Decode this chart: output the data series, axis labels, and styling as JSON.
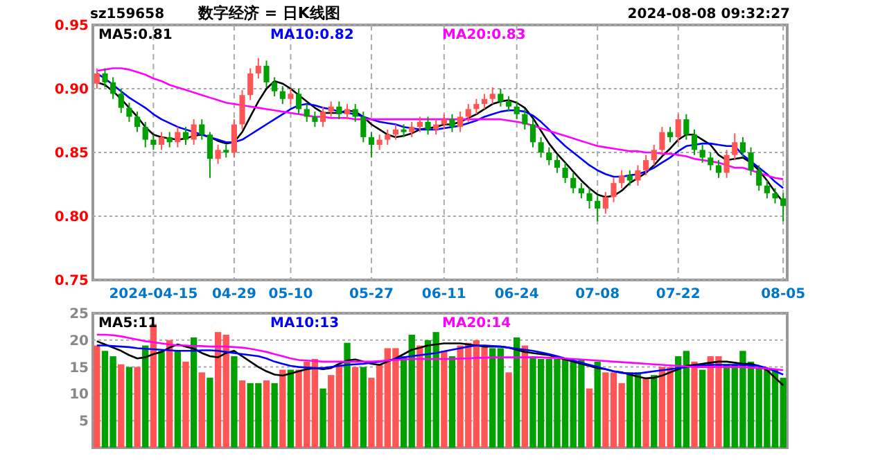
{
  "chart_data": [
    {
      "type": "candlestick",
      "title": "数字经济 = 日K线图",
      "annotations": [
        "sz159658",
        "2024-08-08 09:32:27"
      ],
      "categories": [
        null,
        null,
        null,
        null,
        null,
        null,
        null,
        "2024-04-15",
        null,
        null,
        null,
        null,
        null,
        null,
        null,
        null,
        null,
        "04-29",
        null,
        null,
        null,
        null,
        null,
        null,
        "05-10",
        null,
        null,
        null,
        null,
        null,
        null,
        null,
        null,
        null,
        "05-27",
        null,
        null,
        null,
        null,
        null,
        null,
        null,
        null,
        "06-11",
        null,
        null,
        null,
        null,
        null,
        null,
        null,
        null,
        "06-24",
        null,
        null,
        null,
        null,
        null,
        null,
        null,
        null,
        null,
        "07-08",
        null,
        null,
        null,
        null,
        null,
        null,
        null,
        null,
        null,
        "07-22",
        null,
        null,
        null,
        null,
        null,
        null,
        null,
        null,
        null,
        null,
        null,
        null,
        "08-05"
      ],
      "ohlc": [
        [
          0.904,
          0.916,
          0.9,
          0.912
        ],
        [
          0.912,
          0.916,
          0.901,
          0.905
        ],
        [
          0.905,
          0.909,
          0.892,
          0.896
        ],
        [
          0.896,
          0.9,
          0.881,
          0.885
        ],
        [
          0.885,
          0.889,
          0.874,
          0.878
        ],
        [
          0.878,
          0.882,
          0.866,
          0.87
        ],
        [
          0.87,
          0.874,
          0.854,
          0.86
        ],
        [
          0.86,
          0.864,
          0.852,
          0.856
        ],
        [
          0.856,
          0.866,
          0.852,
          0.862
        ],
        [
          0.862,
          0.866,
          0.854,
          0.858
        ],
        [
          0.858,
          0.87,
          0.854,
          0.866
        ],
        [
          0.866,
          0.87,
          0.856,
          0.86
        ],
        [
          0.86,
          0.876,
          0.856,
          0.872
        ],
        [
          0.872,
          0.876,
          0.86,
          0.864
        ],
        [
          0.864,
          0.866,
          0.83,
          0.845
        ],
        [
          0.845,
          0.856,
          0.841,
          0.852
        ],
        [
          0.852,
          0.856,
          0.846,
          0.85
        ],
        [
          0.85,
          0.876,
          0.846,
          0.872
        ],
        [
          0.872,
          0.899,
          0.868,
          0.895
        ],
        [
          0.895,
          0.916,
          0.891,
          0.912
        ],
        [
          0.912,
          0.924,
          0.908,
          0.918
        ],
        [
          0.918,
          0.922,
          0.901,
          0.905
        ],
        [
          0.905,
          0.909,
          0.894,
          0.898
        ],
        [
          0.898,
          0.902,
          0.888,
          0.892
        ],
        [
          0.892,
          0.9,
          0.888,
          0.896
        ],
        [
          0.896,
          0.9,
          0.88,
          0.884
        ],
        [
          0.884,
          0.888,
          0.874,
          0.878
        ],
        [
          0.878,
          0.882,
          0.87,
          0.874
        ],
        [
          0.874,
          0.886,
          0.87,
          0.882
        ],
        [
          0.882,
          0.89,
          0.878,
          0.886
        ],
        [
          0.886,
          0.89,
          0.876,
          0.88
        ],
        [
          0.88,
          0.888,
          0.876,
          0.884
        ],
        [
          0.884,
          0.888,
          0.874,
          0.878
        ],
        [
          0.878,
          0.882,
          0.858,
          0.862
        ],
        [
          0.862,
          0.866,
          0.846,
          0.856
        ],
        [
          0.856,
          0.864,
          0.852,
          0.86
        ],
        [
          0.86,
          0.868,
          0.856,
          0.864
        ],
        [
          0.864,
          0.872,
          0.86,
          0.868
        ],
        [
          0.868,
          0.872,
          0.862,
          0.866
        ],
        [
          0.866,
          0.874,
          0.862,
          0.87
        ],
        [
          0.87,
          0.878,
          0.866,
          0.874
        ],
        [
          0.874,
          0.878,
          0.864,
          0.868
        ],
        [
          0.868,
          0.876,
          0.864,
          0.872
        ],
        [
          0.872,
          0.88,
          0.868,
          0.876
        ],
        [
          0.876,
          0.88,
          0.866,
          0.87
        ],
        [
          0.87,
          0.882,
          0.866,
          0.878
        ],
        [
          0.878,
          0.888,
          0.874,
          0.884
        ],
        [
          0.884,
          0.892,
          0.88,
          0.888
        ],
        [
          0.888,
          0.896,
          0.884,
          0.892
        ],
        [
          0.892,
          0.901,
          0.888,
          0.896
        ],
        [
          0.896,
          0.9,
          0.886,
          0.89
        ],
        [
          0.89,
          0.894,
          0.882,
          0.886
        ],
        [
          0.886,
          0.89,
          0.876,
          0.88
        ],
        [
          0.88,
          0.884,
          0.868,
          0.872
        ],
        [
          0.872,
          0.876,
          0.854,
          0.858
        ],
        [
          0.858,
          0.862,
          0.846,
          0.85
        ],
        [
          0.85,
          0.854,
          0.84,
          0.844
        ],
        [
          0.844,
          0.848,
          0.834,
          0.838
        ],
        [
          0.838,
          0.842,
          0.826,
          0.83
        ],
        [
          0.83,
          0.834,
          0.818,
          0.822
        ],
        [
          0.822,
          0.826,
          0.814,
          0.818
        ],
        [
          0.818,
          0.822,
          0.806,
          0.812
        ],
        [
          0.812,
          0.816,
          0.796,
          0.806
        ],
        [
          0.806,
          0.819,
          0.802,
          0.815
        ],
        [
          0.815,
          0.83,
          0.811,
          0.826
        ],
        [
          0.826,
          0.836,
          0.822,
          0.832
        ],
        [
          0.832,
          0.836,
          0.824,
          0.828
        ],
        [
          0.828,
          0.84,
          0.824,
          0.836
        ],
        [
          0.836,
          0.848,
          0.832,
          0.844
        ],
        [
          0.844,
          0.856,
          0.84,
          0.852
        ],
        [
          0.852,
          0.87,
          0.848,
          0.866
        ],
        [
          0.866,
          0.87,
          0.858,
          0.862
        ],
        [
          0.862,
          0.88,
          0.858,
          0.876
        ],
        [
          0.876,
          0.88,
          0.86,
          0.864
        ],
        [
          0.864,
          0.868,
          0.848,
          0.852
        ],
        [
          0.852,
          0.856,
          0.842,
          0.846
        ],
        [
          0.846,
          0.85,
          0.836,
          0.84
        ],
        [
          0.84,
          0.844,
          0.83,
          0.834
        ],
        [
          0.834,
          0.852,
          0.83,
          0.848
        ],
        [
          0.848,
          0.865,
          0.844,
          0.858
        ],
        [
          0.858,
          0.862,
          0.846,
          0.85
        ],
        [
          0.85,
          0.854,
          0.832,
          0.836
        ],
        [
          0.836,
          0.84,
          0.82,
          0.824
        ],
        [
          0.824,
          0.828,
          0.814,
          0.818
        ],
        [
          0.818,
          0.822,
          0.81,
          0.814
        ],
        [
          0.814,
          0.818,
          0.796,
          0.808
        ]
      ],
      "series": [
        {
          "type": "line",
          "name": "MA5:0.81",
          "color": "#000000",
          "values": [
            0.905,
            0.903,
            0.898,
            0.892,
            0.885,
            0.878,
            0.87,
            0.864,
            0.862,
            0.861,
            0.86,
            0.861,
            0.863,
            0.864,
            0.862,
            0.859,
            0.857,
            0.858,
            0.866,
            0.878,
            0.89,
            0.9,
            0.906,
            0.904,
            0.9,
            0.895,
            0.89,
            0.885,
            0.881,
            0.881,
            0.881,
            0.883,
            0.882,
            0.878,
            0.872,
            0.868,
            0.864,
            0.862,
            0.863,
            0.865,
            0.868,
            0.869,
            0.87,
            0.872,
            0.872,
            0.874,
            0.877,
            0.88,
            0.884,
            0.888,
            0.89,
            0.891,
            0.889,
            0.885,
            0.877,
            0.867,
            0.857,
            0.849,
            0.842,
            0.835,
            0.828,
            0.822,
            0.817,
            0.815,
            0.816,
            0.82,
            0.826,
            0.83,
            0.834,
            0.84,
            0.847,
            0.853,
            0.86,
            0.864,
            0.864,
            0.86,
            0.856,
            0.848,
            0.844,
            0.845,
            0.846,
            0.842,
            0.836,
            0.828,
            0.819,
            0.811
          ]
        },
        {
          "type": "line",
          "name": "MA10:0.82",
          "color": "#0000ff",
          "values": [
            0.912,
            0.908,
            0.903,
            0.898,
            0.893,
            0.889,
            0.885,
            0.88,
            0.876,
            0.873,
            0.87,
            0.868,
            0.866,
            0.864,
            0.862,
            0.86,
            0.858,
            0.858,
            0.86,
            0.864,
            0.868,
            0.872,
            0.876,
            0.88,
            0.884,
            0.887,
            0.888,
            0.887,
            0.885,
            0.884,
            0.882,
            0.881,
            0.88,
            0.878,
            0.876,
            0.874,
            0.873,
            0.872,
            0.87,
            0.869,
            0.868,
            0.868,
            0.868,
            0.869,
            0.87,
            0.871,
            0.873,
            0.875,
            0.878,
            0.88,
            0.882,
            0.883,
            0.883,
            0.882,
            0.879,
            0.874,
            0.868,
            0.861,
            0.855,
            0.85,
            0.845,
            0.84,
            0.836,
            0.833,
            0.831,
            0.831,
            0.832,
            0.833,
            0.835,
            0.838,
            0.842,
            0.846,
            0.851,
            0.855,
            0.856,
            0.857,
            0.857,
            0.856,
            0.855,
            0.855,
            0.848,
            0.843,
            0.838,
            0.833,
            0.827,
            0.822
          ]
        },
        {
          "type": "line",
          "name": "MA20:0.83",
          "color": "#ff00ff",
          "values": [
            0.914,
            0.915,
            0.916,
            0.916,
            0.915,
            0.913,
            0.911,
            0.908,
            0.906,
            0.903,
            0.901,
            0.899,
            0.897,
            0.895,
            0.893,
            0.891,
            0.889,
            0.888,
            0.887,
            0.886,
            0.885,
            0.884,
            0.883,
            0.882,
            0.881,
            0.88,
            0.879,
            0.878,
            0.878,
            0.877,
            0.877,
            0.877,
            0.876,
            0.876,
            0.876,
            0.876,
            0.876,
            0.876,
            0.876,
            0.876,
            0.876,
            0.876,
            0.876,
            0.876,
            0.876,
            0.876,
            0.876,
            0.876,
            0.876,
            0.876,
            0.876,
            0.875,
            0.874,
            0.873,
            0.871,
            0.869,
            0.867,
            0.865,
            0.863,
            0.861,
            0.859,
            0.857,
            0.855,
            0.854,
            0.853,
            0.852,
            0.851,
            0.851,
            0.85,
            0.85,
            0.849,
            0.849,
            0.848,
            0.847,
            0.845,
            0.844,
            0.843,
            0.842,
            0.84,
            0.838,
            0.838,
            0.836,
            0.834,
            0.832,
            0.83,
            0.829
          ]
        }
      ],
      "ylim": [
        0.75,
        0.95
      ],
      "yticks": [
        {
          "value": 0.75,
          "label": "0.75"
        },
        {
          "value": 0.8,
          "label": "0.80"
        },
        {
          "value": 0.85,
          "label": "0.85"
        },
        {
          "value": 0.9,
          "label": "0.90"
        },
        {
          "value": 0.95,
          "label": "0.95"
        }
      ],
      "grid": true
    },
    {
      "type": "bar",
      "tick_labels": "y",
      "categories": [
        null,
        null,
        null,
        null,
        null,
        null,
        null,
        null,
        null,
        null,
        null,
        null,
        null,
        null,
        null,
        null,
        null,
        null,
        null,
        null,
        null,
        null,
        null,
        null,
        null,
        null,
        null,
        null,
        null,
        null,
        null,
        null,
        null,
        null,
        null,
        null,
        null,
        null,
        null,
        null,
        null,
        null,
        null,
        null,
        null,
        null,
        null,
        null,
        null,
        null,
        null,
        null,
        null,
        null,
        null,
        null,
        null,
        null,
        null,
        null,
        null,
        null,
        null,
        null,
        null,
        null,
        null,
        null,
        null,
        null,
        null,
        null,
        null,
        null,
        null,
        null,
        null,
        null,
        null,
        null,
        null,
        null,
        null,
        null,
        null,
        null
      ],
      "series": [
        {
          "values": [
            19,
            18,
            17,
            15.5,
            15,
            15,
            19,
            23,
            18,
            20,
            18,
            16,
            20.5,
            14,
            13,
            21.5,
            21,
            17,
            12.5,
            12,
            12,
            12.5,
            12,
            14.5,
            14.5,
            14.5,
            16,
            16.5,
            11,
            13.5,
            15.5,
            19.5,
            15,
            15,
            13,
            15.5,
            18.5,
            18.5,
            17,
            21,
            19,
            20,
            21.5,
            18,
            17,
            19,
            19.5,
            20,
            19,
            18.5,
            18.5,
            14,
            20.5,
            19,
            17,
            16.5,
            16.5,
            16.5,
            16.5,
            16,
            16.5,
            11,
            16,
            14,
            14,
            12,
            14,
            14,
            13,
            13.5,
            15,
            15,
            17,
            18,
            16,
            14.5,
            17,
            17,
            15.5,
            15.5,
            18,
            16,
            15,
            14.5,
            14.5,
            13
          ],
          "colors": [
            "#ff5555",
            "#00a000",
            "#00a000",
            "#ff5555",
            "#00a000",
            "#ff5555",
            "#00a000",
            "#ff5555",
            "#00a000",
            "#ff5555",
            "#00a000",
            "#ff5555",
            "#00a000",
            "#ff5555",
            "#00a000",
            "#ff5555",
            "#ff5555",
            "#00a000",
            "#ff5555",
            "#00a000",
            "#00a000",
            "#ff5555",
            "#00a000",
            "#ff5555",
            "#00a000",
            "#ff5555",
            "#ff5555",
            "#ff5555",
            "#00a000",
            "#ff5555",
            "#ff5555",
            "#00a000",
            "#ff5555",
            "#00a000",
            "#ff5555",
            "#ff5555",
            "#ff5555",
            "#ff5555",
            "#00a000",
            "#00a000",
            "#ff5555",
            "#00a000",
            "#00a000",
            "#ff5555",
            "#00a000",
            "#ff5555",
            "#ff5555",
            "#ff5555",
            "#ff5555",
            "#00a000",
            "#00a000",
            "#ff5555",
            "#00a000",
            "#ff5555",
            "#00a000",
            "#00a000",
            "#00a000",
            "#00a000",
            "#00a000",
            "#00a000",
            "#00a000",
            "#ff5555",
            "#00a000",
            "#ff5555",
            "#ff5555",
            "#ff5555",
            "#00a000",
            "#00a000",
            "#ff5555",
            "#00a000",
            "#ff5555",
            "#ff5555",
            "#00a000",
            "#00a000",
            "#ff5555",
            "#00a000",
            "#ff5555",
            "#ff5555",
            "#00a000",
            "#00a000",
            "#00a000",
            "#00a000",
            "#00a000",
            "#00a000",
            "#00a000",
            "#00a000"
          ]
        },
        {
          "type": "line",
          "name": "MA5:11",
          "color": "#000000",
          "values": [
            19.8,
            19.2,
            18.6,
            18.0,
            17.2,
            16.6,
            16.8,
            17.4,
            17.8,
            18.6,
            19.2,
            18.8,
            18.4,
            17.6,
            17.0,
            16.8,
            17.6,
            18.0,
            17.0,
            16.0,
            15.0,
            14.2,
            13.6,
            13.4,
            13.8,
            14.2,
            14.6,
            14.8,
            14.6,
            14.8,
            15.6,
            16.2,
            16.4,
            16.0,
            15.6,
            15.4,
            16.0,
            16.6,
            17.4,
            18.2,
            18.6,
            19.0,
            19.2,
            19.4,
            19.4,
            19.4,
            19.2,
            19.0,
            18.8,
            18.8,
            18.8,
            18.6,
            18.2,
            17.8,
            17.6,
            17.4,
            17.2,
            16.8,
            16.4,
            16.0,
            15.6,
            15.2,
            14.8,
            14.6,
            14.2,
            14.0,
            13.6,
            13.2,
            12.9,
            13.0,
            13.4,
            14.0,
            14.6,
            15.2,
            15.4,
            15.6,
            15.8,
            16.0,
            16.0,
            15.8,
            15.6,
            15.6,
            15.2,
            14.4,
            13.0,
            11.6
          ]
        },
        {
          "type": "line",
          "name": "MA10:13",
          "color": "#0000ff",
          "values": [
            19.0,
            19.0,
            18.9,
            18.8,
            18.7,
            18.5,
            18.4,
            18.3,
            18.2,
            18.1,
            18.0,
            18.0,
            18.0,
            18.1,
            18.1,
            18.0,
            17.8,
            17.6,
            17.4,
            17.2,
            17.0,
            16.6,
            16.0,
            15.6,
            15.2,
            15.0,
            14.9,
            14.8,
            14.8,
            15.0,
            15.2,
            15.4,
            15.5,
            15.6,
            15.8,
            16.0,
            16.2,
            16.5,
            16.8,
            17.0,
            17.2,
            17.4,
            17.6,
            17.9,
            18.2,
            18.5,
            18.8,
            19.0,
            19.0,
            18.9,
            18.8,
            18.6,
            18.4,
            18.2,
            18.0,
            17.7,
            17.4,
            17.0,
            16.6,
            16.2,
            15.8,
            15.4,
            15.0,
            14.6,
            14.2,
            13.9,
            13.8,
            13.8,
            14.0,
            14.2,
            14.4,
            14.6,
            14.8,
            15.0,
            15.2,
            15.3,
            15.4,
            15.4,
            15.4,
            15.4,
            15.4,
            15.3,
            15.2,
            14.8,
            14.2,
            13.6
          ]
        },
        {
          "type": "line",
          "name": "MA20:14",
          "color": "#ff00ff",
          "values": [
            21.0,
            21.0,
            20.9,
            20.7,
            20.4,
            20.1,
            19.8,
            19.6,
            19.4,
            19.2,
            19.0,
            19.0,
            18.9,
            18.9,
            18.8,
            18.8,
            18.8,
            18.7,
            18.6,
            18.4,
            18.1,
            17.8,
            17.4,
            17.0,
            16.6,
            16.3,
            16.2,
            16.1,
            16.0,
            16.0,
            16.0,
            16.0,
            16.0,
            16.0,
            16.0,
            16.1,
            16.2,
            16.3,
            16.4,
            16.5,
            16.5,
            16.5,
            16.5,
            16.5,
            16.5,
            16.6,
            16.6,
            16.7,
            16.7,
            16.8,
            16.8,
            16.8,
            16.8,
            16.8,
            16.8,
            16.8,
            16.7,
            16.7,
            16.6,
            16.5,
            16.4,
            16.3,
            16.2,
            16.1,
            16.0,
            15.9,
            15.8,
            15.7,
            15.6,
            15.5,
            15.4,
            15.3,
            15.2,
            15.1,
            15.0,
            15.0,
            15.0,
            15.0,
            15.0,
            15.0,
            15.0,
            14.9,
            14.8,
            14.7,
            14.6,
            14.4
          ]
        }
      ],
      "ylim": [
        0,
        25
      ],
      "yticks": [
        5,
        10,
        15,
        20,
        25
      ],
      "grid": true
    }
  ]
}
